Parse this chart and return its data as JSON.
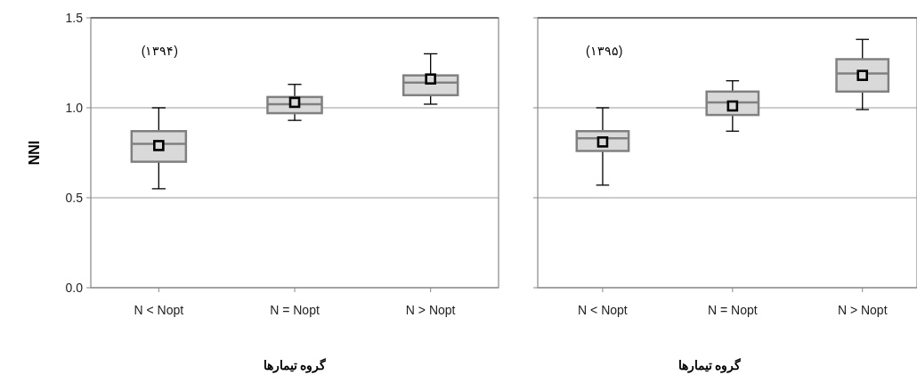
{
  "chart_data": [
    {
      "type": "box",
      "categories": [
        "N < Nopt",
        "N = Nopt",
        "N > Nopt"
      ],
      "xlabel": "گروه تیمارها",
      "ylabel": "NNI",
      "ylim": [
        0,
        1.5
      ],
      "yticks": [
        {
          "value": 0,
          "label": "0.0"
        },
        {
          "value": 0.5,
          "label": "0.5"
        },
        {
          "value": 1.0,
          "label": "1.0"
        },
        {
          "value": 1.5,
          "label": "1.5"
        }
      ],
      "grid": "y",
      "marker": "square",
      "color": "#d9d9d9",
      "annotations": [
        "(۱۳۹۴)"
      ],
      "boxes": [
        {
          "low": 0.55,
          "q1": 0.7,
          "median": 0.8,
          "q3": 0.87,
          "high": 1.0,
          "mean": 0.79
        },
        {
          "low": 0.93,
          "q1": 0.97,
          "median": 1.02,
          "q3": 1.06,
          "high": 1.13,
          "mean": 1.03
        },
        {
          "low": 1.02,
          "q1": 1.07,
          "median": 1.14,
          "q3": 1.18,
          "high": 1.3,
          "mean": 1.16
        }
      ]
    },
    {
      "type": "box",
      "categories": [
        "N < Nopt",
        "N = Nopt",
        "N > Nopt"
      ],
      "xlabel": "گروه تیمارها",
      "ylim": [
        0,
        1.5
      ],
      "yticks": [
        {
          "value": 0,
          "label": null
        },
        {
          "value": 0.5,
          "label": null
        },
        {
          "value": 1.0,
          "label": null
        },
        {
          "value": 1.5,
          "label": null
        }
      ],
      "tick_labels": "x",
      "grid": "y",
      "marker": "square",
      "color": "#d9d9d9",
      "annotations": [
        "(۱۳۹۵)"
      ],
      "boxes": [
        {
          "low": 0.57,
          "q1": 0.76,
          "median": 0.83,
          "q3": 0.87,
          "high": 1.0,
          "mean": 0.81
        },
        {
          "low": 0.87,
          "q1": 0.96,
          "median": 1.03,
          "q3": 1.09,
          "high": 1.15,
          "mean": 1.01
        },
        {
          "low": 0.99,
          "q1": 1.09,
          "median": 1.19,
          "q3": 1.27,
          "high": 1.38,
          "mean": 1.18
        }
      ]
    }
  ]
}
